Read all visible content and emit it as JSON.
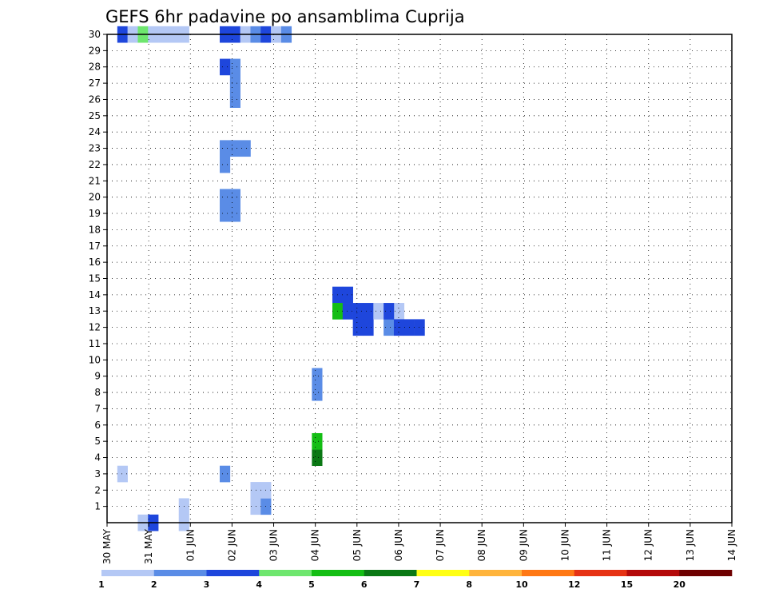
{
  "chart_data": {
    "type": "heatmap",
    "title": "GEFS 6hr padavine po ansamblima Cuprija",
    "xlabel": "",
    "ylabel": "",
    "x_ticks": [
      "30 MAY",
      "31 MAY",
      "01 JUN",
      "02 JUN",
      "03 JUN",
      "04 JUN",
      "05 JUN",
      "06 JUN",
      "07 JUN",
      "08 JUN",
      "09 JUN",
      "10 JUN",
      "11 JUN",
      "12 JUN",
      "13 JUN",
      "14 JUN"
    ],
    "y_ticks": [
      "1",
      "2",
      "3",
      "4",
      "5",
      "6",
      "7",
      "8",
      "9",
      "10",
      "11",
      "12",
      "13",
      "14",
      "15",
      "16",
      "17",
      "18",
      "19",
      "20",
      "21",
      "22",
      "23",
      "24",
      "25",
      "26",
      "27",
      "28",
      "29",
      "30"
    ],
    "y_range": [
      0,
      30
    ],
    "x_steps": 61,
    "grid": "dotted",
    "colorbar": {
      "levels": [
        "1",
        "2",
        "3",
        "4",
        "5",
        "6",
        "7",
        "8",
        "10",
        "12",
        "15",
        "20"
      ],
      "colors": [
        "#b4c8f5",
        "#5a8ce6",
        "#1e46dc",
        "#6ee66e",
        "#14be14",
        "#0a7814",
        "#ffff14",
        "#ffb43c",
        "#ff7814",
        "#e63214",
        "#b40a0a",
        "#6e0000"
      ]
    },
    "cells": [
      [
        1,
        3,
        1
      ],
      [
        1,
        30,
        3
      ],
      [
        2,
        30,
        1
      ],
      [
        3,
        0,
        1
      ],
      [
        3,
        30,
        4
      ],
      [
        4,
        0,
        3
      ],
      [
        4,
        30,
        1
      ],
      [
        5,
        30,
        1
      ],
      [
        6,
        30,
        1
      ],
      [
        7,
        0,
        1
      ],
      [
        7,
        1,
        1
      ],
      [
        7,
        30,
        1
      ],
      [
        11,
        3,
        2
      ],
      [
        11,
        30,
        3
      ],
      [
        12,
        30,
        3
      ],
      [
        13,
        30,
        1
      ],
      [
        14,
        30,
        2
      ],
      [
        15,
        30,
        3
      ],
      [
        16,
        30,
        1
      ],
      [
        17,
        30,
        2
      ],
      [
        14,
        1,
        1
      ],
      [
        14,
        2,
        1
      ],
      [
        15,
        1,
        2
      ],
      [
        15,
        2,
        1
      ],
      [
        11,
        19,
        2
      ],
      [
        12,
        19,
        2
      ],
      [
        11,
        20,
        2
      ],
      [
        12,
        20,
        2
      ],
      [
        11,
        22,
        2
      ],
      [
        11,
        23,
        2
      ],
      [
        12,
        23,
        2
      ],
      [
        13,
        23,
        2
      ],
      [
        12,
        26,
        2
      ],
      [
        12,
        28,
        2
      ],
      [
        11,
        28,
        3
      ],
      [
        12,
        27,
        2
      ],
      [
        20,
        4,
        6
      ],
      [
        20,
        5,
        5
      ],
      [
        20,
        8,
        2
      ],
      [
        20,
        9,
        2
      ],
      [
        22,
        14,
        3
      ],
      [
        23,
        14,
        3
      ],
      [
        22,
        13,
        5
      ],
      [
        23,
        13,
        3
      ],
      [
        24,
        13,
        3
      ],
      [
        25,
        13,
        3
      ],
      [
        24,
        12,
        3
      ],
      [
        25,
        12,
        3
      ],
      [
        26,
        13,
        1
      ],
      [
        27,
        12,
        2
      ],
      [
        28,
        13,
        1
      ],
      [
        27,
        13,
        3
      ],
      [
        28,
        12,
        3
      ],
      [
        29,
        12,
        3
      ],
      [
        30,
        12,
        3
      ]
    ]
  }
}
